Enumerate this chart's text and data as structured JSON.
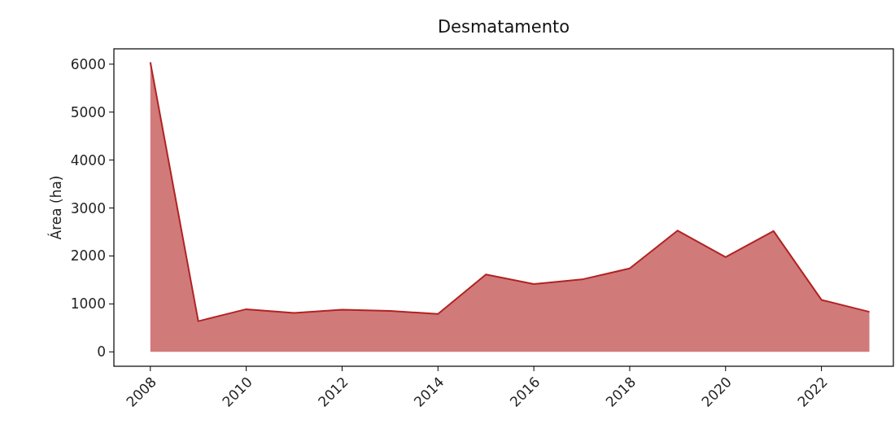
{
  "chart_data": {
    "type": "area",
    "title": "Desmatamento",
    "ylabel": "Área (ha)",
    "x": [
      2008,
      2009,
      2010,
      2011,
      2012,
      2013,
      2014,
      2015,
      2016,
      2017,
      2018,
      2019,
      2020,
      2021,
      2022,
      2023
    ],
    "series": [
      {
        "color": "#b22222",
        "values": [
          6040,
          640,
          890,
          810,
          880,
          855,
          790,
          1615,
          1415,
          1510,
          1740,
          2530,
          1975,
          2520,
          1085,
          835
        ]
      }
    ],
    "xlim": [
      2007.24,
      2023.5
    ],
    "xticks": [
      2008,
      2010,
      2012,
      2014,
      2016,
      2018,
      2020,
      2022
    ],
    "ylim": [
      -300,
      6320
    ],
    "yticks": [
      0,
      1000,
      2000,
      3000,
      4000,
      5000,
      6000
    ],
    "grid": false
  }
}
